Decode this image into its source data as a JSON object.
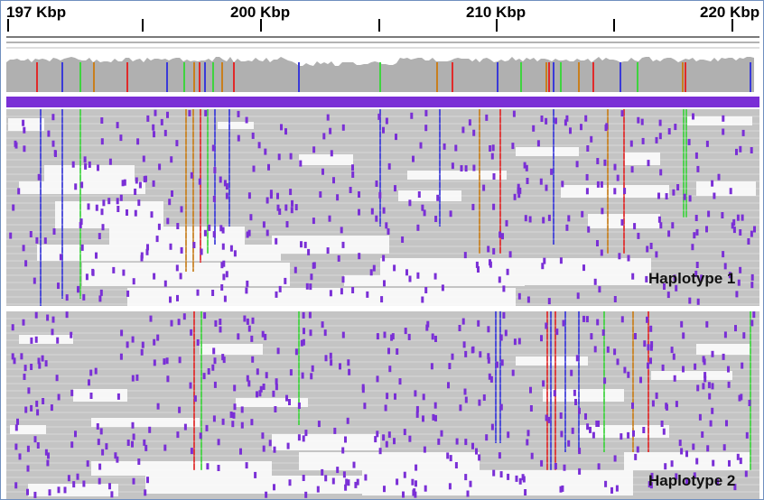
{
  "ruler": {
    "ticks": [
      {
        "label": "197 Kbp"
      },
      {
        "label": "200 Kbp"
      },
      {
        "label": "210 Kbp"
      },
      {
        "label": "220 Kbp"
      }
    ]
  },
  "haplotypes": [
    {
      "label": "Haplotype 1"
    },
    {
      "label": "Haplotype 2"
    }
  ],
  "colors": {
    "read": "#c4c4c4",
    "coverage": "#b0b0b0",
    "insertion": "#7a2fd6",
    "mismatch_A": "#3fd33f",
    "mismatch_C": "#3a3ad8",
    "mismatch_G": "#c87f1e",
    "mismatch_T": "#e02a2a",
    "background": "#ffffff"
  }
}
